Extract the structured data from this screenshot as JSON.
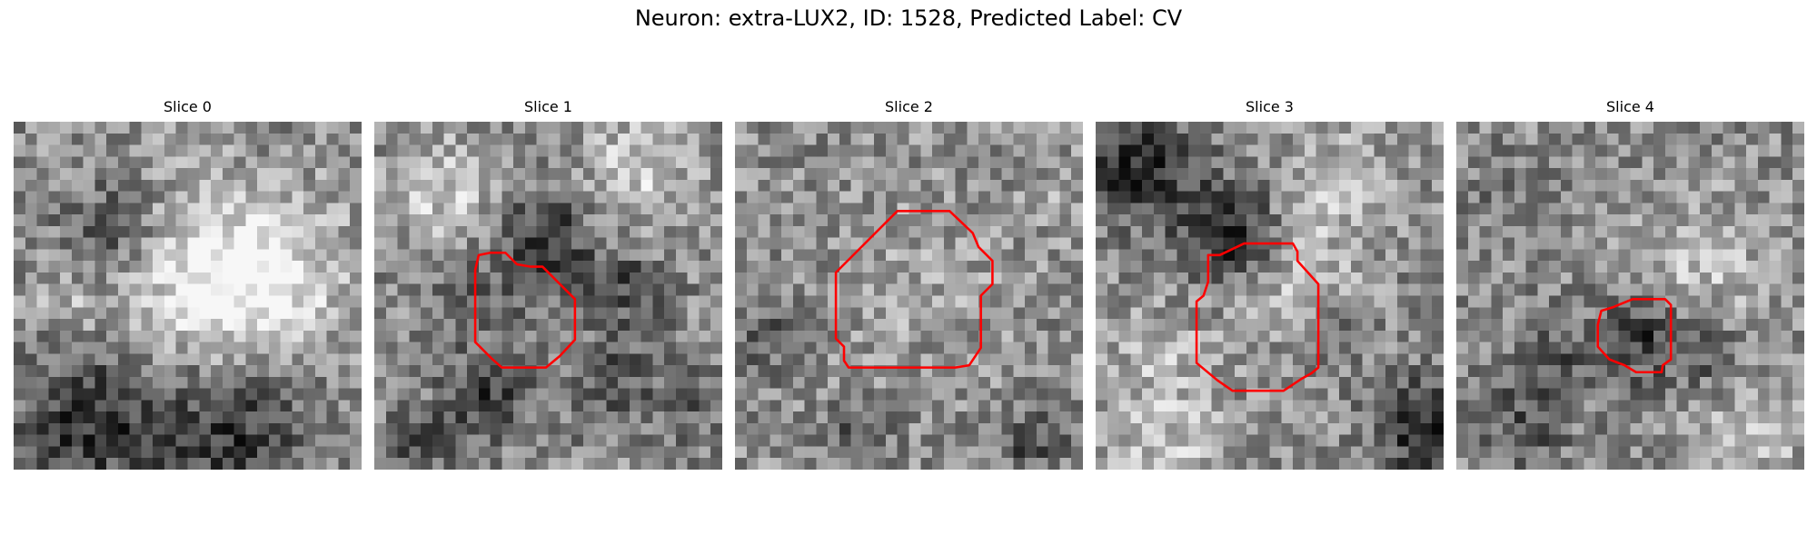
{
  "figure": {
    "title": "Neuron: extra-LUX2, ID: 1528, Predicted Label: CV",
    "colormap": "gray",
    "contour_color": "#ff0000",
    "panels": [
      {
        "title": "Slice 0",
        "seed": 11,
        "has_contour": false
      },
      {
        "title": "Slice 1",
        "seed": 23,
        "has_contour": true
      },
      {
        "title": "Slice 2",
        "seed": 37,
        "has_contour": true
      },
      {
        "title": "Slice 3",
        "seed": 49,
        "has_contour": true
      },
      {
        "title": "Slice 4",
        "seed": 61,
        "has_contour": true
      }
    ]
  }
}
